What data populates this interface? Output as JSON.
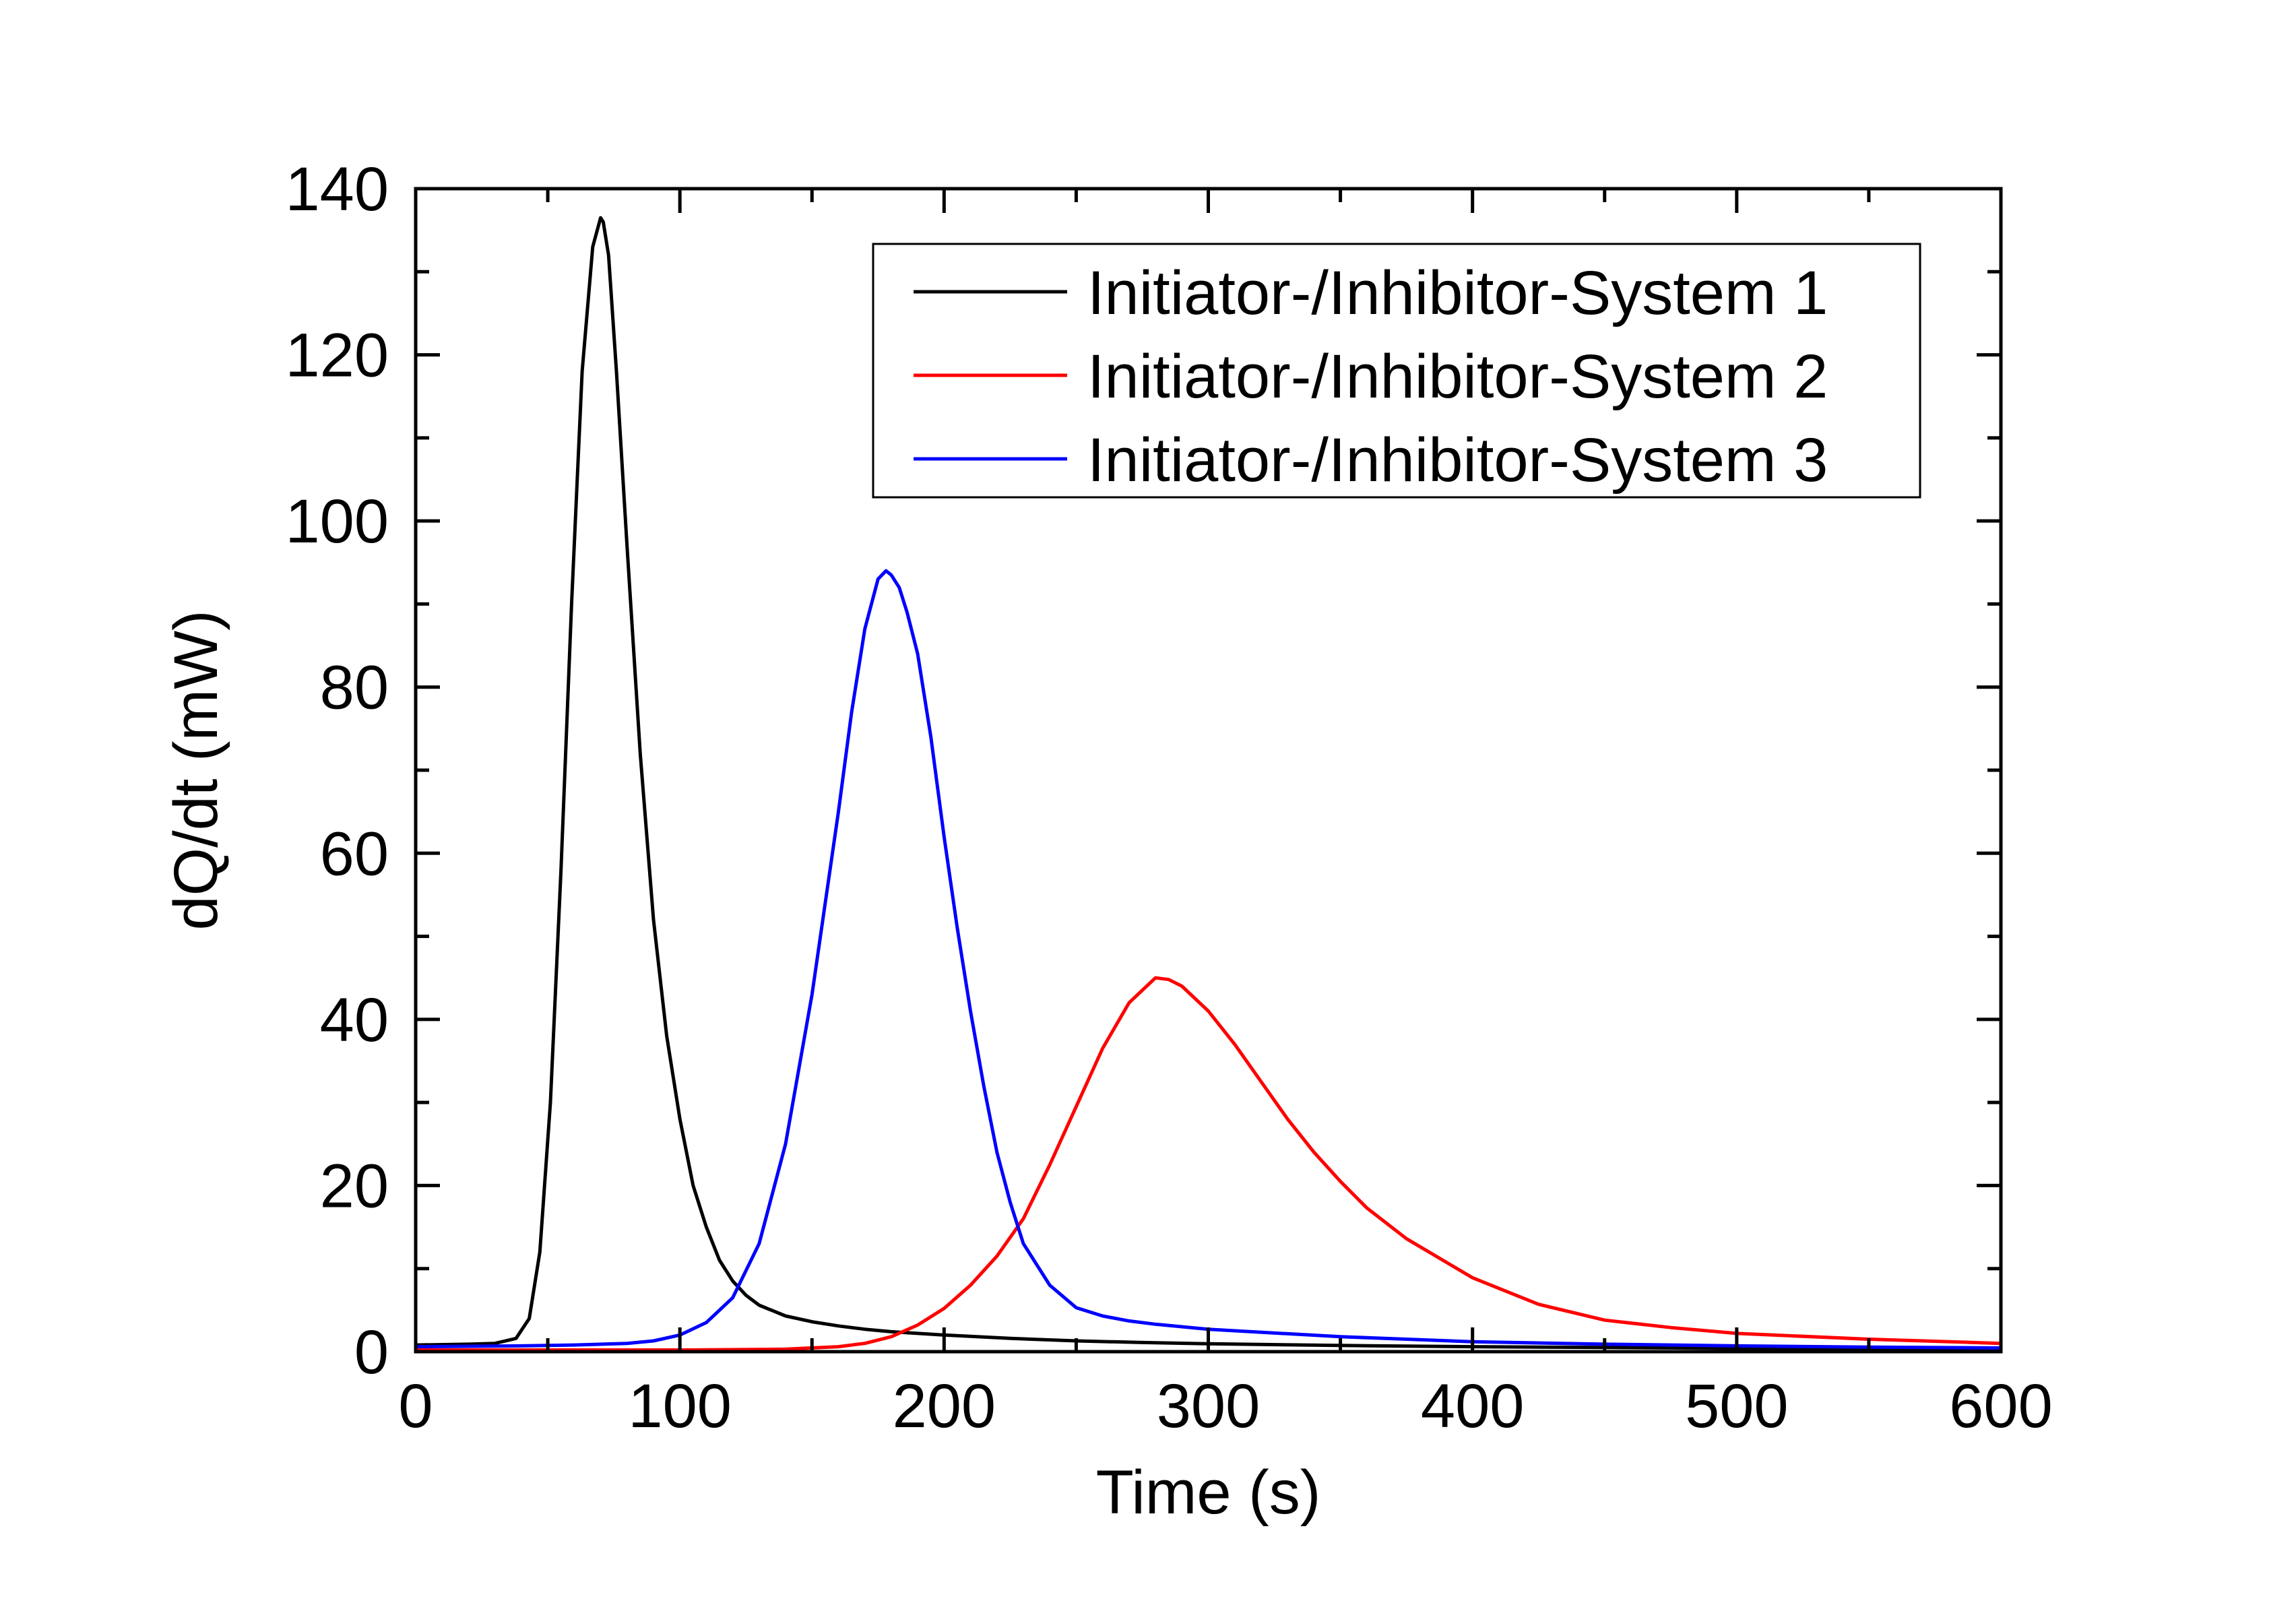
{
  "chart_data": {
    "type": "line",
    "title": "",
    "xlabel": "Time (s)",
    "ylabel": "dQ/dt (mW)",
    "xlim": [
      0,
      600
    ],
    "ylim": [
      0,
      140
    ],
    "xticks": [
      0,
      100,
      200,
      300,
      400,
      500,
      600
    ],
    "yticks": [
      0,
      20,
      40,
      60,
      80,
      100,
      120,
      140
    ],
    "grid": false,
    "legend_position": "top-right",
    "series": [
      {
        "name": "Initiator-/Inhibitor-System 1",
        "color": "#000000",
        "x": [
          0,
          20,
          30,
          38,
          43,
          47,
          51,
          55,
          59,
          63,
          67,
          70,
          71,
          73,
          76,
          80,
          85,
          90,
          95,
          100,
          105,
          110,
          115,
          120,
          125,
          130,
          140,
          150,
          160,
          170,
          180,
          200,
          225,
          250,
          275,
          300,
          350,
          400,
          450,
          500,
          550,
          600
        ],
        "y": [
          0.8,
          0.9,
          1.0,
          1.6,
          4,
          12,
          30,
          58,
          90,
          118,
          133,
          136.5,
          136,
          132,
          118,
          97,
          72,
          52,
          38,
          28,
          20,
          15,
          11,
          8.5,
          6.8,
          5.6,
          4.3,
          3.6,
          3.1,
          2.7,
          2.4,
          2.0,
          1.6,
          1.3,
          1.1,
          0.95,
          0.75,
          0.6,
          0.5,
          0.4,
          0.35,
          0.3
        ]
      },
      {
        "name": "Initiator-/Inhibitor-System 2",
        "color": "#ff0000",
        "x": [
          0,
          100,
          140,
          160,
          170,
          180,
          190,
          200,
          210,
          220,
          230,
          240,
          250,
          260,
          270,
          280,
          285,
          290,
          300,
          310,
          320,
          330,
          340,
          350,
          360,
          375,
          400,
          425,
          450,
          475,
          500,
          550,
          600
        ],
        "y": [
          0.2,
          0.2,
          0.3,
          0.6,
          1.0,
          1.8,
          3.2,
          5.2,
          8.0,
          11.5,
          16.0,
          22.5,
          29.5,
          36.5,
          42.0,
          45.0,
          44.8,
          44.0,
          41.0,
          37.0,
          32.5,
          28.0,
          24.0,
          20.5,
          17.3,
          13.6,
          8.9,
          5.7,
          3.8,
          2.9,
          2.2,
          1.5,
          1.0
        ]
      },
      {
        "name": "Initiator-/Inhibitor-System 3",
        "color": "#0000ff",
        "x": [
          0,
          40,
          60,
          80,
          90,
          100,
          110,
          120,
          130,
          140,
          150,
          160,
          165,
          170,
          175,
          178,
          180,
          183,
          186,
          190,
          195,
          200,
          205,
          210,
          215,
          220,
          225,
          230,
          240,
          250,
          260,
          270,
          280,
          300,
          350,
          400,
          450,
          500,
          550,
          600
        ],
        "y": [
          0.6,
          0.7,
          0.8,
          1.0,
          1.3,
          2.0,
          3.5,
          6.5,
          13,
          25,
          43,
          65,
          77,
          87,
          93,
          94,
          93.5,
          92,
          89,
          84,
          74,
          62,
          51,
          41,
          32,
          24,
          18,
          13,
          8.0,
          5.3,
          4.3,
          3.7,
          3.3,
          2.7,
          1.8,
          1.2,
          0.9,
          0.7,
          0.55,
          0.45
        ]
      }
    ]
  }
}
